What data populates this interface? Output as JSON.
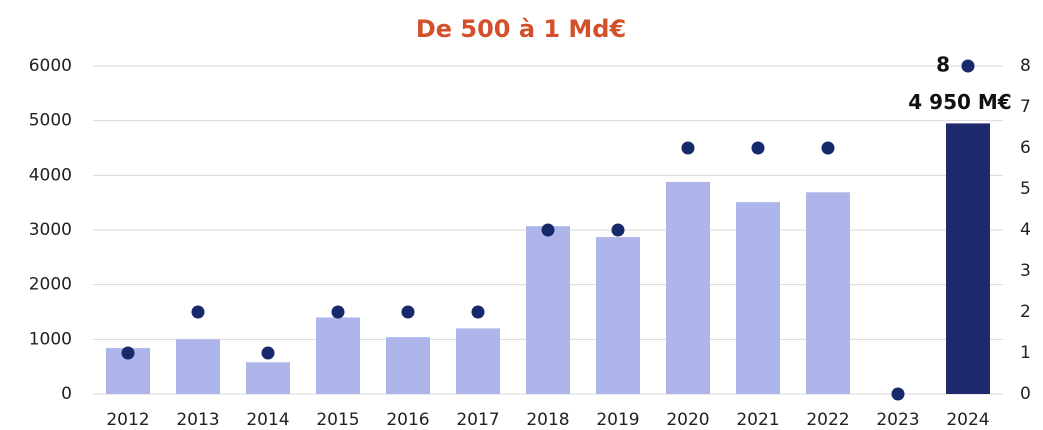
{
  "chart_data": {
    "type": "bar_dot",
    "title": "De 500 à 1 Md€",
    "categories": [
      "2012",
      "2013",
      "2014",
      "2015",
      "2016",
      "2017",
      "2018",
      "2019",
      "2020",
      "2021",
      "2022",
      "2023",
      "2024"
    ],
    "series": [
      {
        "type": "bar",
        "colors": [
          "#adb5ea",
          "#adb5ea",
          "#adb5ea",
          "#adb5ea",
          "#adb5ea",
          "#adb5ea",
          "#adb5ea",
          "#adb5ea",
          "#adb5ea",
          "#adb5ea",
          "#adb5ea",
          "#adb5ea",
          "#1f2a6e"
        ],
        "values": [
          840,
          1000,
          580,
          1400,
          1040,
          1200,
          3070,
          2870,
          3880,
          3510,
          3690,
          0,
          4950
        ],
        "value_labels": [
          null,
          null,
          null,
          null,
          null,
          null,
          null,
          null,
          null,
          null,
          null,
          null,
          "4 950 M€"
        ]
      },
      {
        "type": "dot",
        "axis": "y2",
        "color": "#15296b",
        "values": [
          1,
          2,
          1,
          2,
          2,
          2,
          4,
          4,
          6,
          6,
          6,
          0,
          8
        ]
      }
    ],
    "ylim": [
      0,
      6000
    ],
    "yticks": [
      0,
      1000,
      2000,
      3000,
      4000,
      5000,
      6000
    ],
    "y2lim": [
      0,
      8
    ],
    "y2ticks": [
      0,
      1,
      2,
      3,
      4,
      5,
      6,
      7,
      8
    ],
    "grid": true
  }
}
